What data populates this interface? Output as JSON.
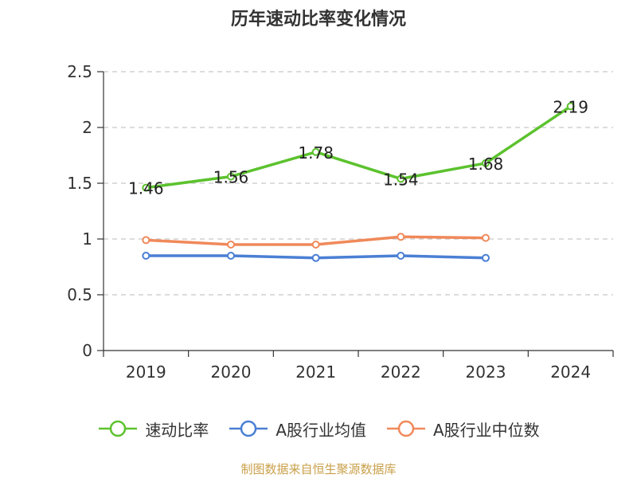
{
  "title": "历年速动比率变化情况",
  "source": "制图数据来自恒生聚源数据库",
  "chart_data": {
    "type": "line",
    "categories": [
      "2019",
      "2020",
      "2021",
      "2022",
      "2023",
      "2024"
    ],
    "ylim": [
      0,
      2.5
    ],
    "yticks": [
      0,
      0.5,
      1,
      1.5,
      2,
      2.5
    ],
    "ytick_labels": [
      "0",
      "0.5",
      "1",
      "1.5",
      "2",
      "2.5"
    ],
    "grid": true,
    "legend_position": "bottom",
    "series": [
      {
        "name": "速动比率",
        "color": "#5cc22e",
        "values": [
          1.46,
          1.56,
          1.78,
          1.54,
          1.68,
          2.19
        ],
        "labels": [
          "1.46",
          "1.56",
          "1.78",
          "1.54",
          "1.68",
          "2.19"
        ],
        "show_labels": true
      },
      {
        "name": "A股行业均值",
        "color": "#4a7fd4",
        "values": [
          0.85,
          0.85,
          0.83,
          0.85,
          0.83,
          null
        ],
        "show_labels": false
      },
      {
        "name": "A股行业中位数",
        "color": "#f0895a",
        "values": [
          0.99,
          0.95,
          0.95,
          1.02,
          1.01,
          null
        ],
        "show_labels": false
      }
    ]
  }
}
